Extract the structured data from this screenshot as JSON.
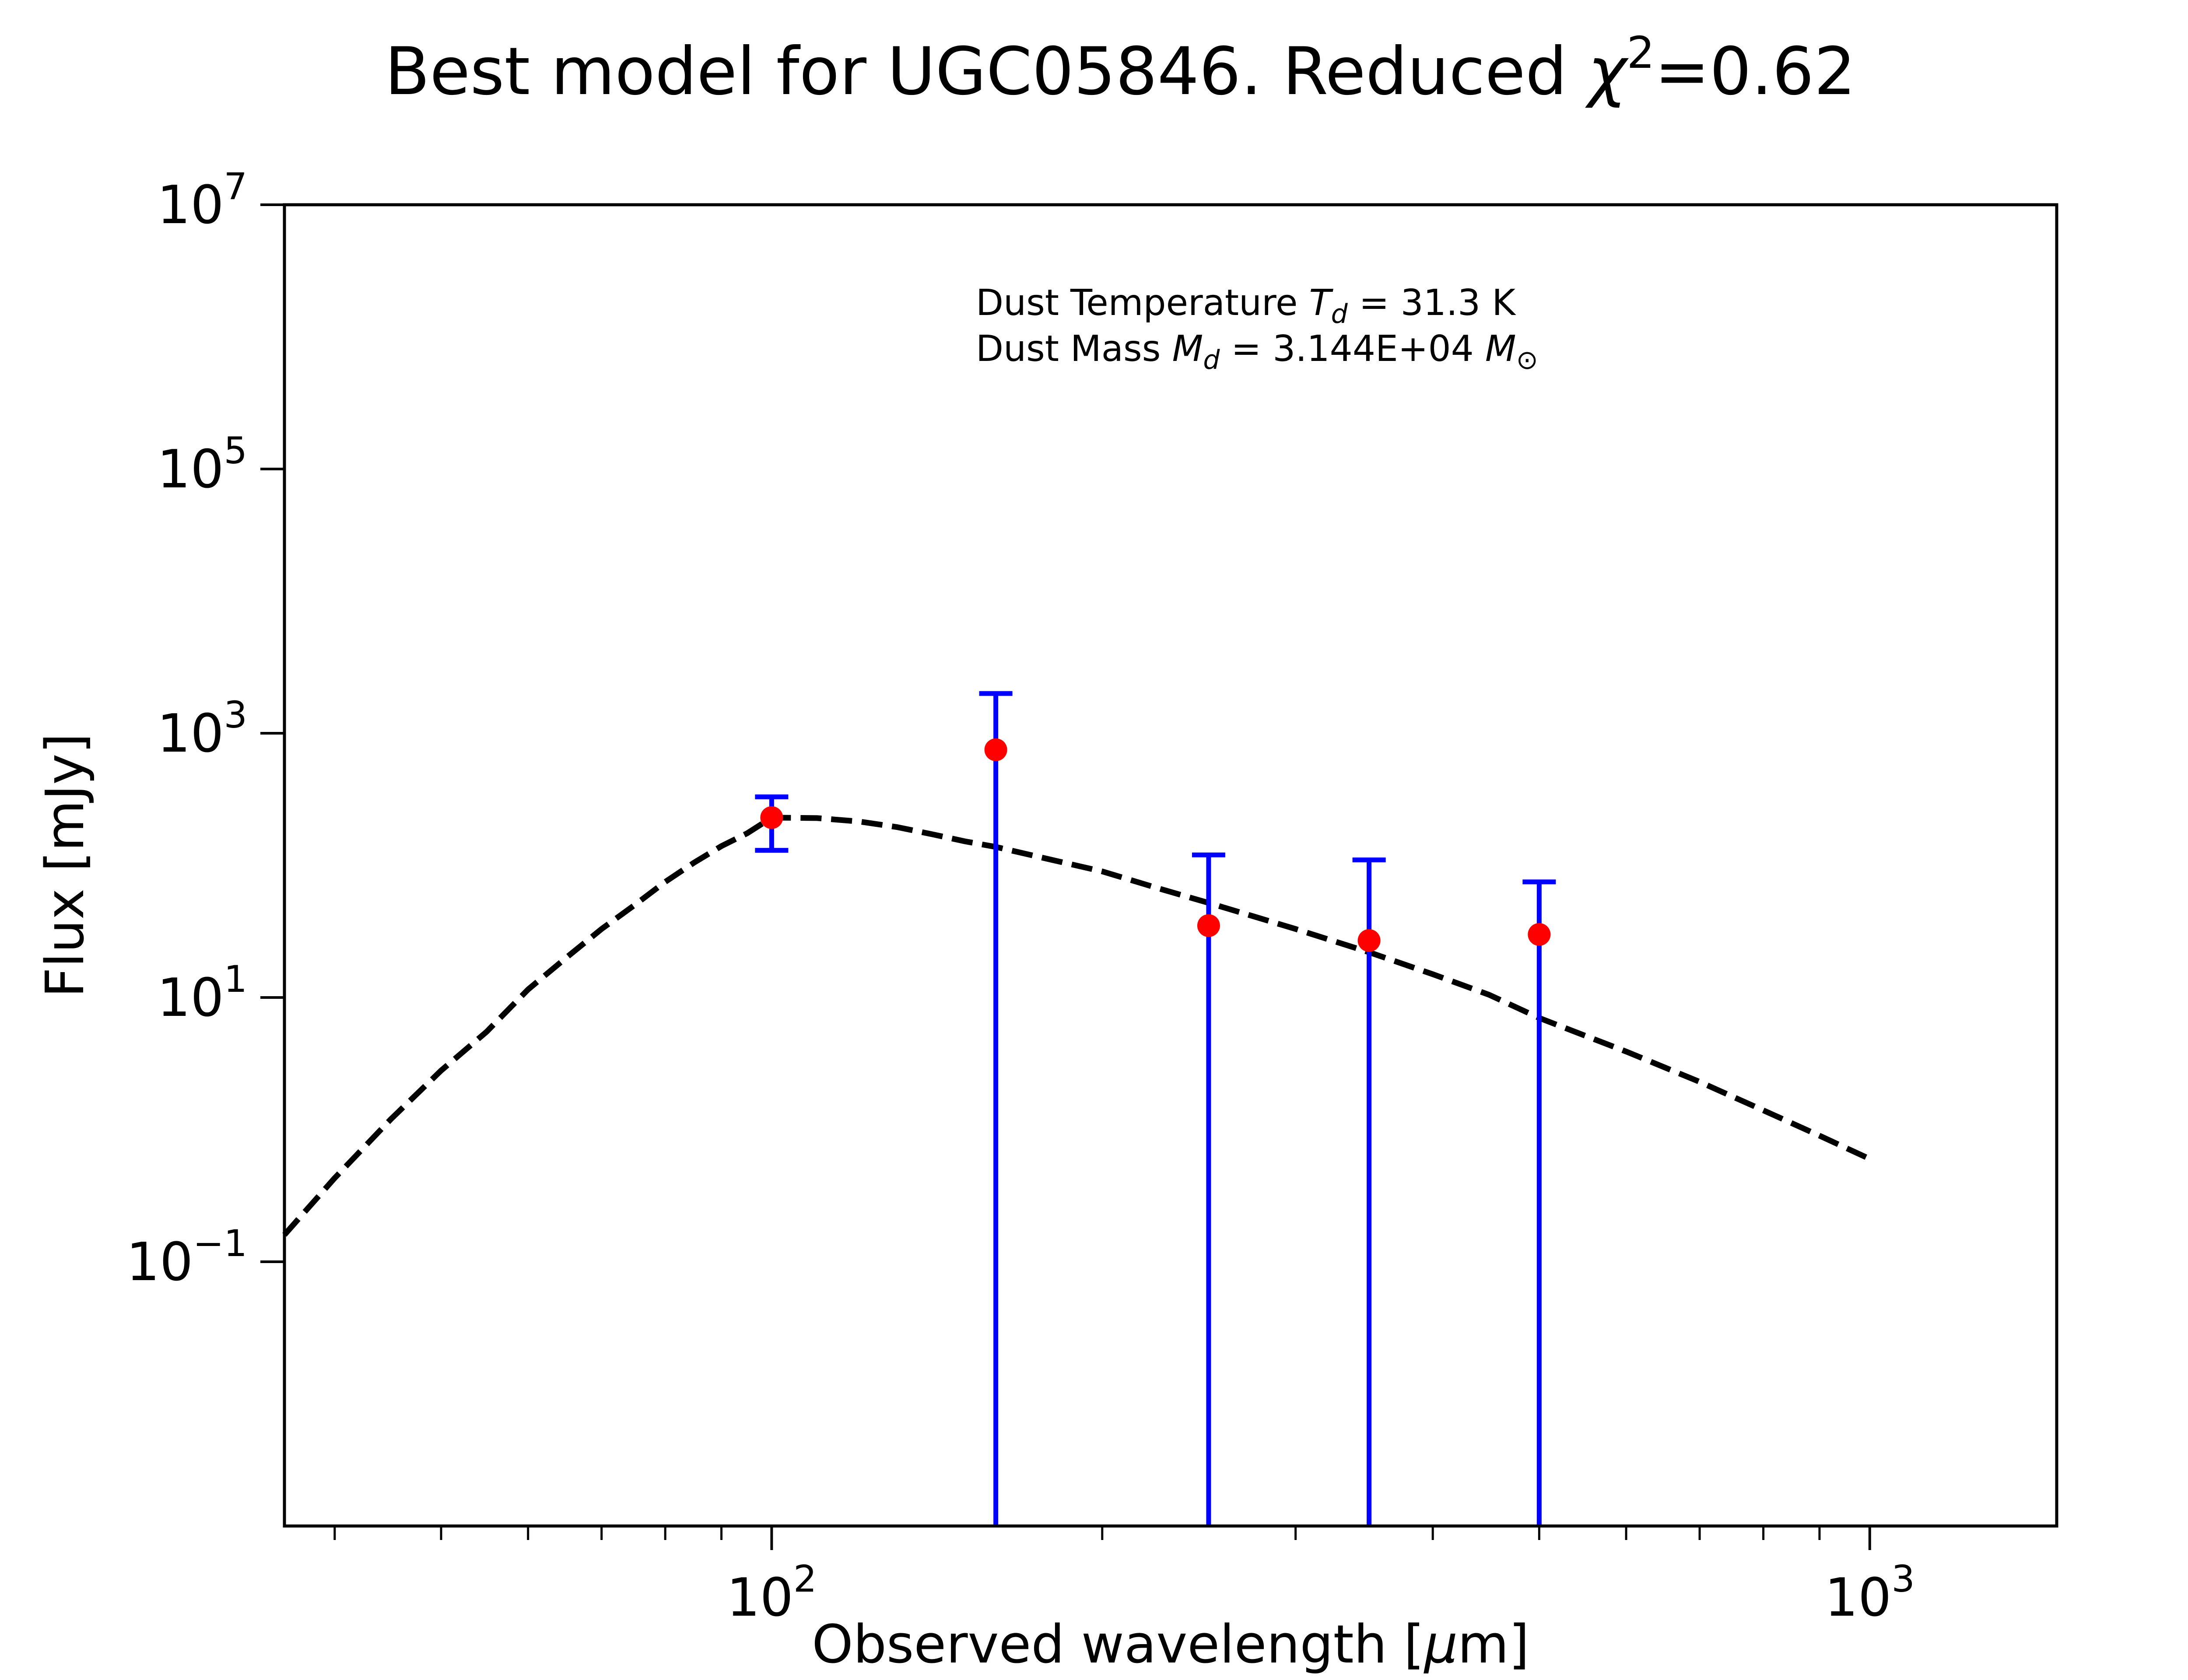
{
  "chart_data": {
    "type": "scatter",
    "title": {
      "prefix": "Best model for UGC05846. Reduced ",
      "chi": "χ",
      "sup": "2",
      "suffix": "=0.62"
    },
    "xlabel": {
      "text": "Observed wavelength [",
      "unit_italic": "μ",
      "unit_rest": "m]"
    },
    "ylabel": "Flux [mJy]",
    "x_scale": "log",
    "y_scale": "log",
    "xlim": [
      36,
      1480
    ],
    "ylim": [
      0.001,
      10000000
    ],
    "x_ticks": [
      {
        "value": 100,
        "base": "10",
        "exp": "2"
      },
      {
        "value": 1000,
        "base": "10",
        "exp": "3"
      }
    ],
    "y_ticks": [
      {
        "value": 0.1,
        "base": "10",
        "exp": "−1"
      },
      {
        "value": 10,
        "base": "10",
        "exp": "1"
      },
      {
        "value": 1000,
        "base": "10",
        "exp": "3"
      },
      {
        "value": 100000,
        "base": "10",
        "exp": "5"
      },
      {
        "value": 10000000,
        "base": "10",
        "exp": "7"
      }
    ],
    "observations": [
      {
        "x": 100,
        "y": 230,
        "y_low": 130,
        "y_high": 330
      },
      {
        "x": 160,
        "y": 750,
        "y_low": 0.001,
        "y_high": 2000
      },
      {
        "x": 250,
        "y": 35,
        "y_low": 0.001,
        "y_high": 120
      },
      {
        "x": 350,
        "y": 27,
        "y_low": 0.001,
        "y_high": 110
      },
      {
        "x": 500,
        "y": 30,
        "y_low": 0.001,
        "y_high": 75
      }
    ],
    "model": {
      "x": [
        36,
        40,
        45,
        50,
        55,
        60,
        65,
        70,
        75,
        80,
        85,
        90,
        95,
        100,
        110,
        120,
        130,
        140,
        150,
        160,
        180,
        200,
        225,
        250,
        275,
        300,
        350,
        400,
        450,
        500,
        600,
        700,
        800,
        900,
        1000
      ],
      "y": [
        0.16,
        0.43,
        1.2,
        2.8,
        5.5,
        11.5,
        20,
        33,
        50,
        75,
        105,
        140,
        175,
        230,
        228,
        215,
        195,
        172,
        152,
        138,
        110,
        90,
        67,
        52,
        41,
        33,
        22,
        15,
        10.5,
        7.0,
        3.9,
        2.3,
        1.4,
        0.9,
        0.6
      ]
    },
    "annotations": {
      "line1": {
        "prefix": "Dust Temperature ",
        "sym": "T",
        "sub": "d",
        "suffix": " = 31.3 K"
      },
      "line2": {
        "prefix": "Dust Mass ",
        "sym": "M",
        "sub": "d",
        "mid": " = 3.144E+04 ",
        "sym2": "M",
        "sub2": "⊙"
      }
    },
    "colors": {
      "errorbar": "#0000ff",
      "point": "#ff0000",
      "model": "#000000"
    },
    "grid": false
  }
}
